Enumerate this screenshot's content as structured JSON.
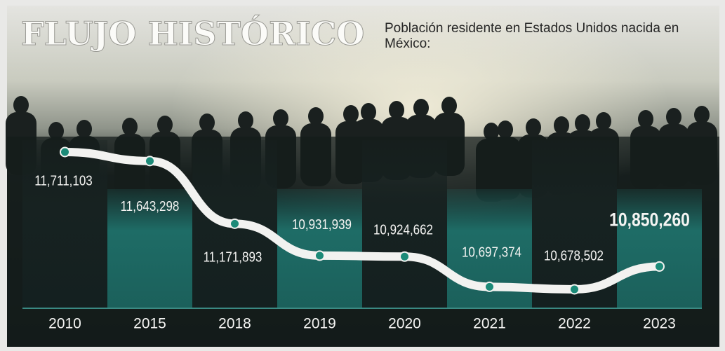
{
  "chart_data": {
    "type": "line",
    "title": "FLUJO HISTÓRICO",
    "subtitle": "Población residente en Estados Unidos nacida en México:",
    "categories": [
      "2010",
      "2015",
      "2018",
      "2019",
      "2020",
      "2021",
      "2022",
      "2023"
    ],
    "values": [
      11711103,
      11643298,
      11171893,
      10931939,
      10924662,
      10697374,
      10678502,
      10850260
    ],
    "value_labels": [
      "11,711,103",
      "11,643,298",
      "11,171,893",
      "10,931,939",
      "10,924,662",
      "10,697,374",
      "10,678,502",
      "10,850,260"
    ],
    "color": "#f2f2f0",
    "marker_color": "#1c8a78"
  }
}
